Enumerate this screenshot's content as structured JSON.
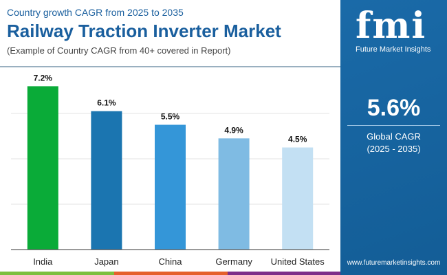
{
  "header": {
    "subtitle": "Country growth CAGR from 2025 to 2035",
    "title": "Railway Traction Inverter Market",
    "note": "(Example of Country CAGR from 40+ covered in Report)"
  },
  "brand": {
    "logo": "fmi",
    "name": "Future Market Insights",
    "url": "www.futuremarketinsights.com"
  },
  "global": {
    "value": "5.6%",
    "label": "Global CAGR",
    "period": "(2025 - 2035)"
  },
  "chart_data": {
    "type": "bar",
    "title": "",
    "xlabel": "",
    "ylabel": "",
    "ylim": [
      0,
      8
    ],
    "grid": true,
    "categories": [
      "India",
      "Japan",
      "China",
      "Germany",
      "United States"
    ],
    "values": [
      7.2,
      6.1,
      5.5,
      4.9,
      4.5
    ],
    "labels": [
      "7.2%",
      "6.1%",
      "5.5%",
      "4.9%",
      "4.5%"
    ],
    "colors": [
      "#0aab38",
      "#1b75b0",
      "#3496d8",
      "#7fbbe3",
      "#c3e0f3"
    ]
  },
  "stripe_colors": [
    "#7cbf3f",
    "#e5602c",
    "#7e2e8a"
  ]
}
